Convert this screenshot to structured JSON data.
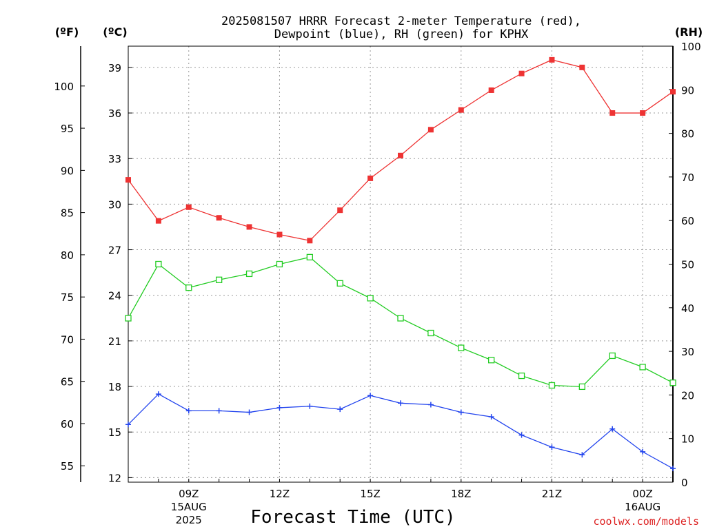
{
  "title_line1": "2025081507 HRRR Forecast 2-meter Temperature (red),",
  "title_line2": "Dewpoint (blue), RH (green) for KPHX",
  "credit": "coolwx.com/models",
  "colors": {
    "temperature": "#ee3333",
    "dewpoint": "#2244ee",
    "rh": "#22cc22",
    "grid": "#999999"
  },
  "chart_data": {
    "type": "line",
    "title": "2025081507 HRRR Forecast 2-meter Temperature (red), Dewpoint (blue), RH (green) for KPHX",
    "xlabel": "Forecast Time (UTC)",
    "x_hours_utc": [
      "07Z",
      "08Z",
      "09Z",
      "10Z",
      "11Z",
      "12Z",
      "13Z",
      "14Z",
      "15Z",
      "16Z",
      "17Z",
      "18Z",
      "19Z",
      "20Z",
      "21Z",
      "22Z",
      "23Z",
      "00Z",
      "01Z"
    ],
    "x_ticks": [
      {
        "hour_index": 2,
        "line1": "09Z",
        "line2": "15AUG",
        "line3": "2025"
      },
      {
        "hour_index": 5,
        "line1": "12Z",
        "line2": "",
        "line3": ""
      },
      {
        "hour_index": 8,
        "line1": "15Z",
        "line2": "",
        "line3": ""
      },
      {
        "hour_index": 11,
        "line1": "18Z",
        "line2": "",
        "line3": ""
      },
      {
        "hour_index": 14,
        "line1": "21Z",
        "line2": "",
        "line3": ""
      },
      {
        "hour_index": 17,
        "line1": "00Z",
        "line2": "16AUG",
        "line3": ""
      }
    ],
    "axes": {
      "left_f": {
        "unit": "(ºF)",
        "ticks": [
          55,
          60,
          65,
          70,
          75,
          80,
          85,
          90,
          95,
          100
        ]
      },
      "left_c": {
        "unit": "(ºC)",
        "ylim": [
          11.7,
          40.4
        ],
        "ticks": [
          12,
          15,
          18,
          21,
          24,
          27,
          30,
          33,
          36,
          39
        ]
      },
      "right_rh": {
        "unit": "(RH)",
        "ylim": [
          0,
          100
        ],
        "ticks": [
          0,
          10,
          20,
          30,
          40,
          50,
          60,
          70,
          80,
          90,
          100
        ]
      }
    },
    "grid": true,
    "series": [
      {
        "name": "Temperature (red)",
        "units": "C",
        "axis": "left_c",
        "marker": "filled-square",
        "values": [
          31.6,
          28.9,
          29.8,
          29.1,
          28.5,
          28.0,
          27.6,
          29.6,
          31.7,
          33.2,
          34.9,
          36.2,
          37.5,
          38.6,
          39.5,
          39.0,
          36.0,
          36.0,
          37.4
        ]
      },
      {
        "name": "Dewpoint (blue)",
        "units": "C",
        "axis": "left_c",
        "marker": "plus",
        "values": [
          15.5,
          17.5,
          16.4,
          16.4,
          16.3,
          16.6,
          16.7,
          16.5,
          17.4,
          16.9,
          16.8,
          16.3,
          16.0,
          14.8,
          14.0,
          13.5,
          15.2,
          13.7,
          12.6
        ]
      },
      {
        "name": "RH (green)",
        "units": "%",
        "axis": "right_rh",
        "marker": "open-square",
        "values": [
          37.6,
          50.0,
          44.6,
          46.4,
          47.8,
          50.0,
          51.6,
          45.6,
          42.2,
          37.6,
          34.2,
          30.8,
          28.0,
          24.4,
          22.2,
          21.9,
          29.0,
          26.4,
          22.8
        ]
      }
    ]
  }
}
